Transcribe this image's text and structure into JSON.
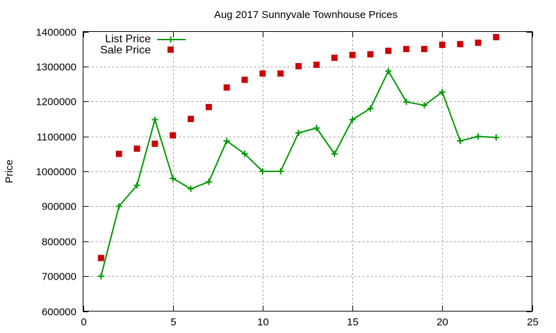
{
  "chart_data": {
    "type": "line",
    "title": "Aug 2017 Sunnyvale Townhouse Prices",
    "xlabel": "",
    "ylabel": "Price",
    "xlim": [
      0,
      25
    ],
    "ylim": [
      600000,
      1400000
    ],
    "xticks": [
      0,
      5,
      10,
      15,
      20,
      25
    ],
    "yticks": [
      600000,
      700000,
      800000,
      900000,
      1000000,
      1100000,
      1200000,
      1300000,
      1400000
    ],
    "ytick_labels": [
      "600000",
      "700000",
      "800000",
      "900000",
      "1000000",
      "1100000",
      "1200000",
      "1300000",
      "1400000"
    ],
    "xtick_labels": [
      "0",
      "5",
      "10",
      "15",
      "20",
      "25"
    ],
    "grid": true,
    "legend_position": "top-left",
    "x": [
      1,
      2,
      3,
      4,
      5,
      6,
      7,
      8,
      9,
      10,
      11,
      12,
      13,
      14,
      15,
      16,
      17,
      18,
      19,
      20,
      21,
      22,
      23
    ],
    "series": [
      {
        "name": "List Price",
        "style": "linespoints",
        "marker": "plus",
        "color": "#009900",
        "values": [
          700000,
          900000,
          960000,
          1148000,
          980000,
          950000,
          970000,
          1087000,
          1050000,
          1000000,
          1000000,
          1110000,
          1124000,
          1050000,
          1148000,
          1180000,
          1287000,
          1199000,
          1189000,
          1227000,
          1087000,
          1100000,
          1097000
        ]
      },
      {
        "name": "Sale Price",
        "style": "points",
        "marker": "square",
        "color": "#cc0000",
        "values": [
          752000,
          1050000,
          1065000,
          1079000,
          1103000,
          1150000,
          1184000,
          1240000,
          1262000,
          1280000,
          1280000,
          1301000,
          1305000,
          1325000,
          1333000,
          1335000,
          1345000,
          1350000,
          1350000,
          1362000,
          1364000,
          1368000,
          1384000
        ]
      }
    ]
  }
}
